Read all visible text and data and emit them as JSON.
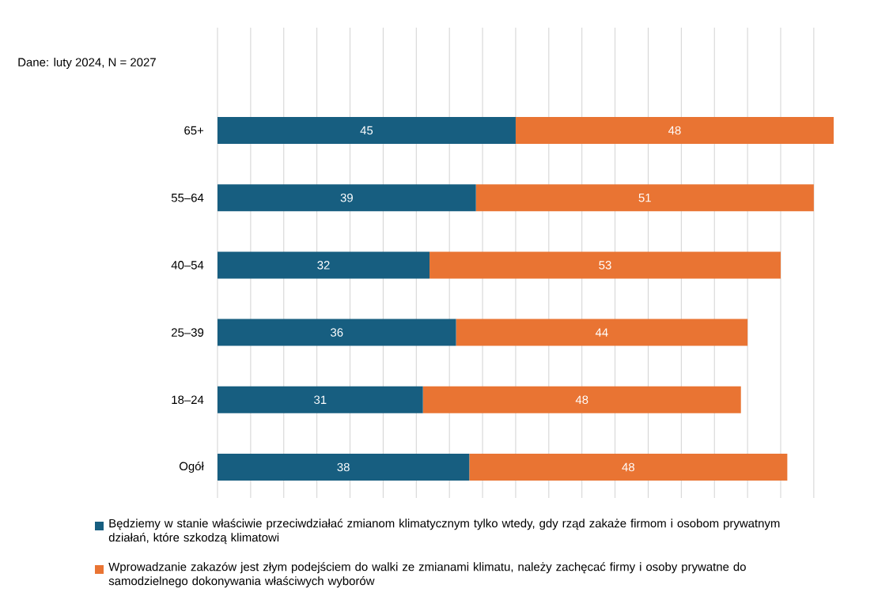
{
  "chart_data": {
    "type": "bar",
    "orientation": "horizontal",
    "stacked": true,
    "categories": [
      "65+",
      "55–64",
      "40–54",
      "25–39",
      "18–24",
      "Ogół"
    ],
    "series": [
      {
        "name": "Będziemy w stanie właściwie przeciwdziałać zmianom klimatycznym tylko wtedy, gdy rząd zakaże firmom i osobom prywatnym działań, które szkodzą klimatowi",
        "color": "#175e80",
        "values": [
          45,
          39,
          32,
          36,
          31,
          38
        ]
      },
      {
        "name": "Wprowadzanie zakazów jest złym podejściem do walki ze zmianami klimatu, należy zachęcać firmy i osoby prywatne do samodzielnego dokonywania właściwych wyborów",
        "color": "#e97433",
        "values": [
          48,
          51,
          53,
          44,
          48,
          48
        ]
      }
    ],
    "tick_labels": "y",
    "grid": "x",
    "data_labels": true,
    "legend": "bottom",
    "annotations": [
      "Dane: luty 2024, N = 2027"
    ]
  }
}
